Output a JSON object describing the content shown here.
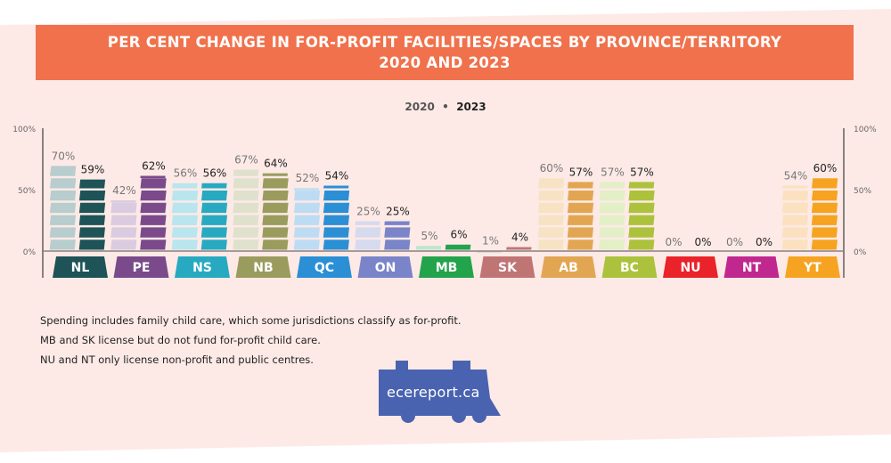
{
  "title_line1": "PER CENT CHANGE IN FOR-PROFIT FACILITIES/SPACES BY PROVINCE/TERRITORY",
  "title_line2": "2020 AND 2023",
  "legend": {
    "a": "2020",
    "sep": "•",
    "b": "2023"
  },
  "chart_data": {
    "type": "bar",
    "title": "PER CENT CHANGE IN FOR-PROFIT FACILITIES/SPACES BY PROVINCE/TERRITORY 2020 AND 2023",
    "ylim": [
      0,
      100
    ],
    "yticks": [
      "0%",
      "50%",
      "100%"
    ],
    "categories": [
      "NL",
      "PE",
      "NS",
      "NB",
      "QC",
      "ON",
      "MB",
      "SK",
      "AB",
      "BC",
      "NU",
      "NT",
      "YT"
    ],
    "series": [
      {
        "name": "2020",
        "values": [
          70,
          42,
          56,
          67,
          52,
          25,
          5,
          1,
          60,
          57,
          0,
          0,
          54
        ]
      },
      {
        "name": "2023",
        "values": [
          59,
          62,
          56,
          64,
          54,
          25,
          6,
          4,
          57,
          57,
          0,
          0,
          60
        ]
      }
    ],
    "colors": [
      "#1e5357",
      "#7a4a8a",
      "#27aac1",
      "#9a9c5e",
      "#2b8fd6",
      "#7a84c8",
      "#23a34b",
      "#c07575",
      "#e2a653",
      "#adc23c",
      "#ea2229",
      "#c0278f",
      "#f6a321"
    ],
    "light_colors": [
      "#b8cdcd",
      "#dacbe0",
      "#b9e5ee",
      "#dfe1cd",
      "#bddcf3",
      "#d6daee",
      "#bfe6cf",
      "#ecd5d4",
      "#f7e3c4",
      "#e3efc6",
      "#f7c9c9",
      "#eec5dd",
      "#fbe1c0"
    ],
    "legend": "top-center",
    "grid": false
  },
  "notes": [
    "Spending includes family child care, which some jurisdictions classify as for-profit.",
    "MB and SK license but do not fund for-profit child care.",
    "NU and NT only license non-profit and public centres."
  ],
  "logo_text": "ecereport.ca",
  "colors": {
    "banner": "#f0714b",
    "background": "#fdeae6",
    "logo": "#4a63b0"
  }
}
